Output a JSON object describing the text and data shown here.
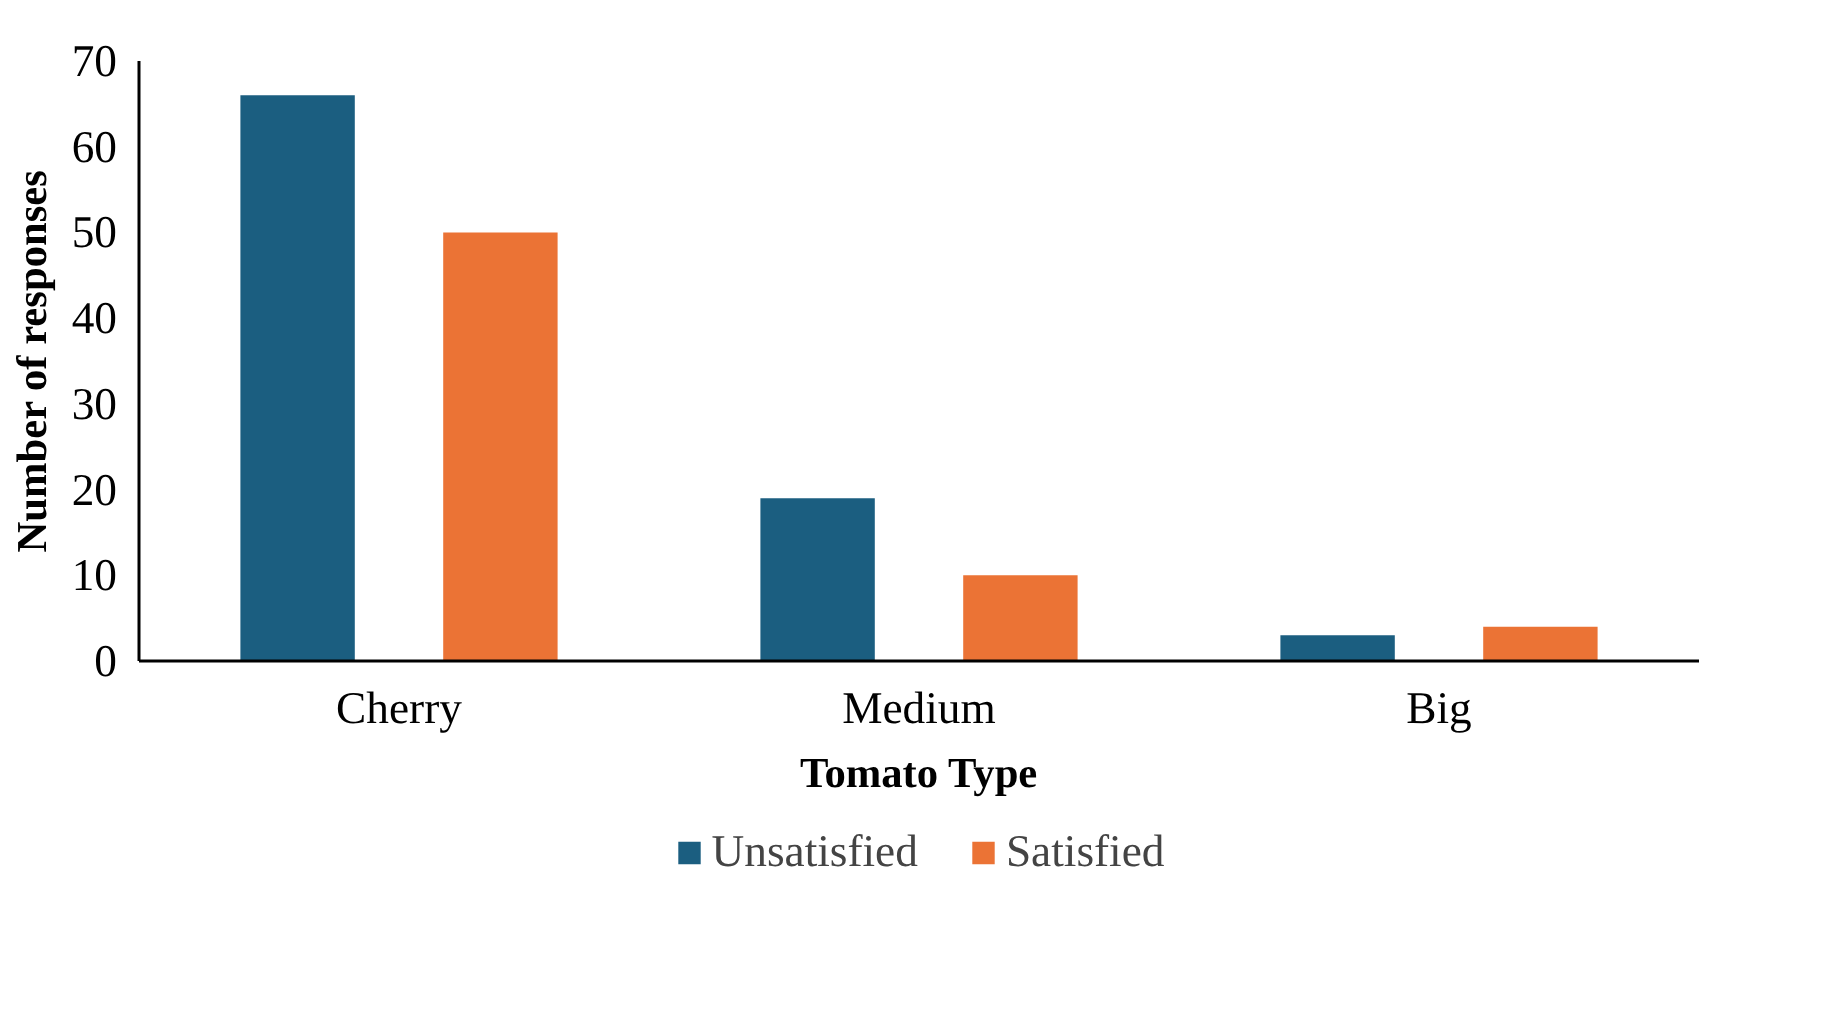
{
  "chart_data": {
    "type": "bar",
    "xlabel": "Tomato Type",
    "ylabel": "Number of responses",
    "categories": [
      "Cherry",
      "Medium",
      "Big"
    ],
    "series": [
      {
        "name": "Unsatisfied",
        "color": "#1b5e80",
        "values": [
          66,
          19,
          3
        ]
      },
      {
        "name": "Satisfied",
        "color": "#eb7335",
        "values": [
          50,
          10,
          4
        ]
      }
    ],
    "ylim": [
      0,
      70
    ],
    "yticks": [
      0,
      10,
      20,
      30,
      40,
      50,
      60,
      70
    ],
    "grid": false,
    "legend": "bottom"
  }
}
